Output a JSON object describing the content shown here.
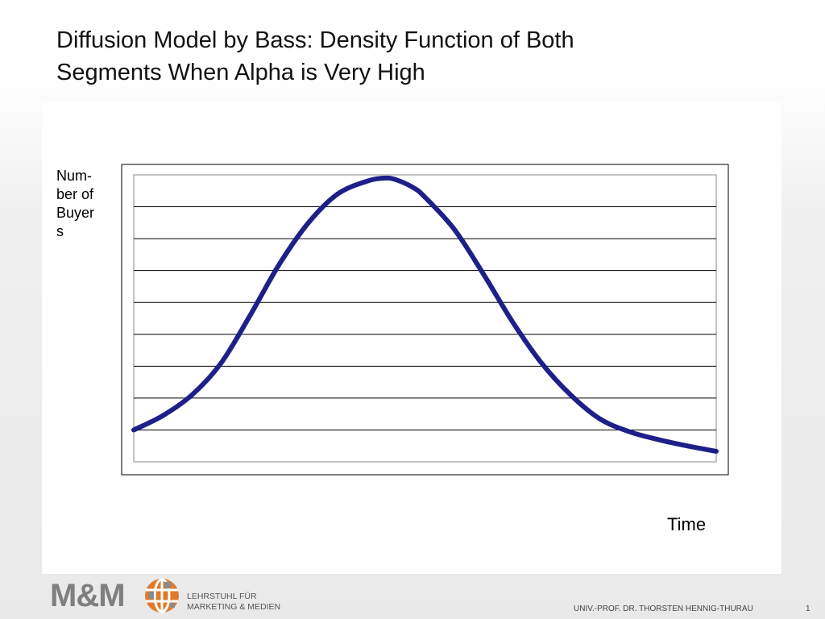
{
  "slide": {
    "title_line1": "Diffusion Model by Bass: Density Function of Both",
    "title_line2": "Segments When Alpha is Very High"
  },
  "footer": {
    "logo": "M&M",
    "institute_line1": "LEHRSTUHL FÜR",
    "institute_line2": "MARKETING & MEDIEN",
    "professor": "UNIV.-PROF. DR. THORSTEN HENNIG-THURAU",
    "page_number": "1"
  },
  "colors": {
    "series": "#1f1f8a",
    "gridline": "#000000",
    "logo_gray": "#7f7f7f",
    "logo_orange": "#e07b2a"
  },
  "chart_data": {
    "type": "line",
    "title": "",
    "xlabel": "Time",
    "ylabel": "Num-\nber of\nBuyer\ns",
    "x_ticks_labeled": false,
    "y_ticks_labeled": false,
    "ylim": [
      0,
      9
    ],
    "grid": true,
    "legend": "none",
    "series": [
      {
        "x": [
          0,
          0.05,
          0.1,
          0.15,
          0.2,
          0.25,
          0.3,
          0.35,
          0.4,
          0.43,
          0.45,
          0.48,
          0.5,
          0.55,
          0.6,
          0.65,
          0.7,
          0.75,
          0.8,
          0.85,
          0.9,
          0.95,
          1.0
        ],
        "values": [
          1.0,
          1.45,
          2.1,
          3.1,
          4.6,
          6.2,
          7.5,
          8.4,
          8.8,
          8.9,
          8.85,
          8.6,
          8.3,
          7.3,
          5.9,
          4.4,
          3.1,
          2.1,
          1.35,
          0.95,
          0.7,
          0.5,
          0.33
        ]
      }
    ]
  }
}
